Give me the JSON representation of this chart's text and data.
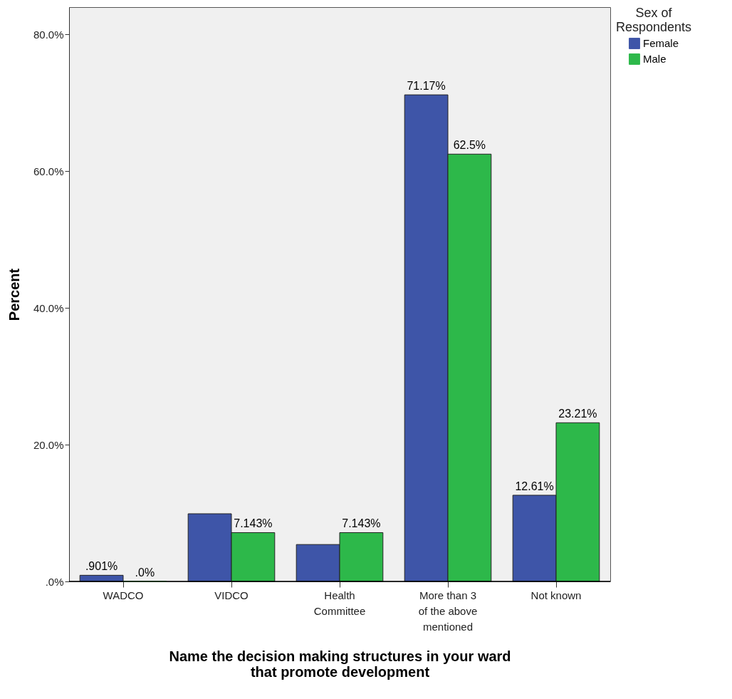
{
  "chart_data": {
    "type": "bar",
    "xlabel": "Name the decision making structures in your ward that promote development",
    "ylabel": "Percent",
    "legend_title": "Sex of Respondents",
    "categories": [
      "WADCO",
      "VIDCO",
      "Health Committee",
      "More than 3 of the above mentioned",
      "Not known"
    ],
    "series": [
      {
        "name": "Female",
        "color": "#3e55a8",
        "values": [
          0.901,
          9.9,
          5.4,
          71.17,
          12.61
        ],
        "value_labels": [
          ".901%",
          null,
          null,
          "71.17%",
          "12.61%"
        ]
      },
      {
        "name": "Male",
        "color": "#2db84a",
        "values": [
          0,
          7.143,
          7.143,
          62.5,
          23.21
        ],
        "value_labels": [
          ".0%",
          "7.143%",
          "7.143%",
          "62.5%",
          "23.21%"
        ]
      }
    ],
    "ylim": [
      0,
      84
    ],
    "yticks": [
      {
        "value": 0,
        "label": ".0%"
      },
      {
        "value": 20,
        "label": "20.0%"
      },
      {
        "value": 40,
        "label": "40.0%"
      },
      {
        "value": 60,
        "label": "60.0%"
      },
      {
        "value": 80,
        "label": "80.0%"
      }
    ],
    "grid": false,
    "legend": "top right"
  }
}
